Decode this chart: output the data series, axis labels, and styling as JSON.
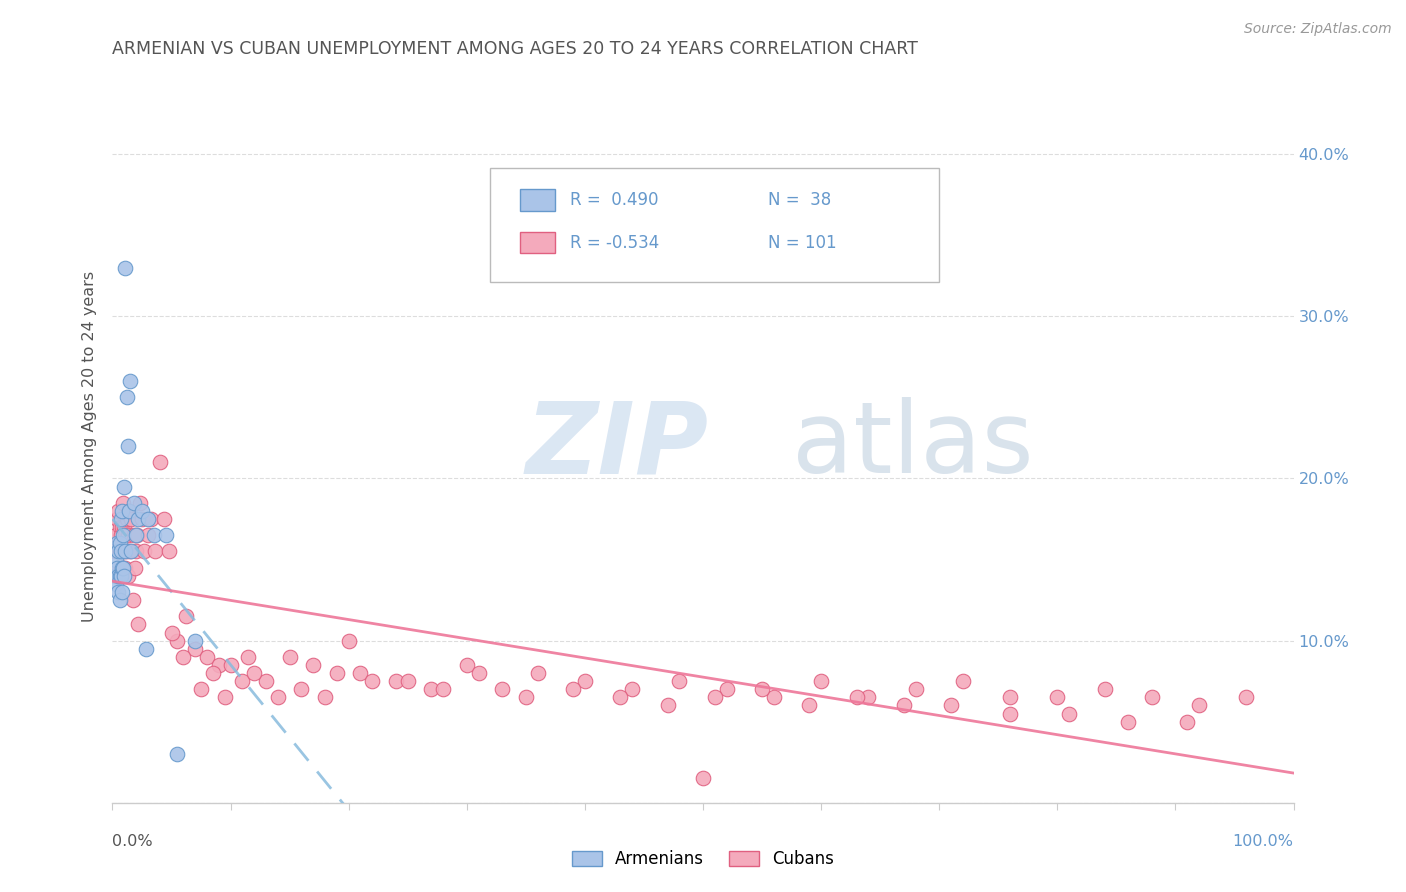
{
  "title": "ARMENIAN VS CUBAN UNEMPLOYMENT AMONG AGES 20 TO 24 YEARS CORRELATION CHART",
  "source": "Source: ZipAtlas.com",
  "ylabel": "Unemployment Among Ages 20 to 24 years",
  "armenian_color": "#aac4e8",
  "armenian_edge": "#6699cc",
  "cuban_color": "#f4aabc",
  "cuban_edge": "#e06080",
  "trend_armenian_color": "#88bbdd",
  "trend_cuban_color": "#ee7799",
  "watermark_zip_color": "#ccddef",
  "watermark_atlas_color": "#bbccdd",
  "background_color": "#ffffff",
  "grid_color": "#dddddd",
  "ytick_color": "#6699cc",
  "title_color": "#555555",
  "source_color": "#999999",
  "armenian_x": [
    0.002,
    0.003,
    0.003,
    0.004,
    0.004,
    0.005,
    0.005,
    0.005,
    0.006,
    0.006,
    0.006,
    0.007,
    0.007,
    0.007,
    0.008,
    0.008,
    0.008,
    0.009,
    0.009,
    0.01,
    0.01,
    0.011,
    0.011,
    0.012,
    0.013,
    0.014,
    0.015,
    0.016,
    0.018,
    0.02,
    0.022,
    0.025,
    0.028,
    0.03,
    0.035,
    0.045,
    0.055,
    0.07
  ],
  "armenian_y": [
    0.14,
    0.135,
    0.15,
    0.145,
    0.16,
    0.13,
    0.14,
    0.155,
    0.125,
    0.14,
    0.16,
    0.14,
    0.155,
    0.175,
    0.13,
    0.145,
    0.18,
    0.145,
    0.165,
    0.14,
    0.195,
    0.155,
    0.33,
    0.25,
    0.22,
    0.18,
    0.26,
    0.155,
    0.185,
    0.165,
    0.175,
    0.18,
    0.095,
    0.175,
    0.165,
    0.165,
    0.03,
    0.1
  ],
  "cuban_x": [
    0.002,
    0.003,
    0.004,
    0.005,
    0.005,
    0.006,
    0.006,
    0.007,
    0.007,
    0.008,
    0.008,
    0.009,
    0.009,
    0.01,
    0.01,
    0.011,
    0.011,
    0.012,
    0.012,
    0.013,
    0.013,
    0.014,
    0.015,
    0.016,
    0.017,
    0.018,
    0.019,
    0.02,
    0.021,
    0.022,
    0.023,
    0.025,
    0.027,
    0.03,
    0.033,
    0.036,
    0.04,
    0.044,
    0.048,
    0.055,
    0.062,
    0.07,
    0.08,
    0.09,
    0.1,
    0.115,
    0.13,
    0.15,
    0.17,
    0.19,
    0.21,
    0.24,
    0.27,
    0.3,
    0.33,
    0.36,
    0.4,
    0.44,
    0.48,
    0.52,
    0.56,
    0.6,
    0.64,
    0.68,
    0.72,
    0.76,
    0.8,
    0.84,
    0.88,
    0.92,
    0.96,
    0.05,
    0.06,
    0.075,
    0.085,
    0.095,
    0.11,
    0.12,
    0.14,
    0.16,
    0.18,
    0.2,
    0.22,
    0.25,
    0.28,
    0.31,
    0.35,
    0.39,
    0.43,
    0.47,
    0.51,
    0.55,
    0.59,
    0.63,
    0.67,
    0.71,
    0.76,
    0.81,
    0.86,
    0.91,
    0.5
  ],
  "cuban_y": [
    0.155,
    0.165,
    0.175,
    0.145,
    0.18,
    0.155,
    0.17,
    0.145,
    0.165,
    0.17,
    0.155,
    0.185,
    0.145,
    0.17,
    0.155,
    0.165,
    0.145,
    0.155,
    0.175,
    0.14,
    0.165,
    0.18,
    0.155,
    0.175,
    0.125,
    0.165,
    0.145,
    0.155,
    0.165,
    0.11,
    0.185,
    0.175,
    0.155,
    0.165,
    0.175,
    0.155,
    0.21,
    0.175,
    0.155,
    0.1,
    0.115,
    0.095,
    0.09,
    0.085,
    0.085,
    0.09,
    0.075,
    0.09,
    0.085,
    0.08,
    0.08,
    0.075,
    0.07,
    0.085,
    0.07,
    0.08,
    0.075,
    0.07,
    0.075,
    0.07,
    0.065,
    0.075,
    0.065,
    0.07,
    0.075,
    0.065,
    0.065,
    0.07,
    0.065,
    0.06,
    0.065,
    0.105,
    0.09,
    0.07,
    0.08,
    0.065,
    0.075,
    0.08,
    0.065,
    0.07,
    0.065,
    0.1,
    0.075,
    0.075,
    0.07,
    0.08,
    0.065,
    0.07,
    0.065,
    0.06,
    0.065,
    0.07,
    0.06,
    0.065,
    0.06,
    0.06,
    0.055,
    0.055,
    0.05,
    0.05,
    0.015
  ],
  "xlim": [
    0.0,
    1.0
  ],
  "ylim": [
    0.0,
    0.44
  ],
  "ytick_vals": [
    0.0,
    0.1,
    0.2,
    0.3,
    0.4
  ],
  "ytick_labels": [
    "",
    "10.0%",
    "20.0%",
    "30.0%",
    "40.0%"
  ]
}
